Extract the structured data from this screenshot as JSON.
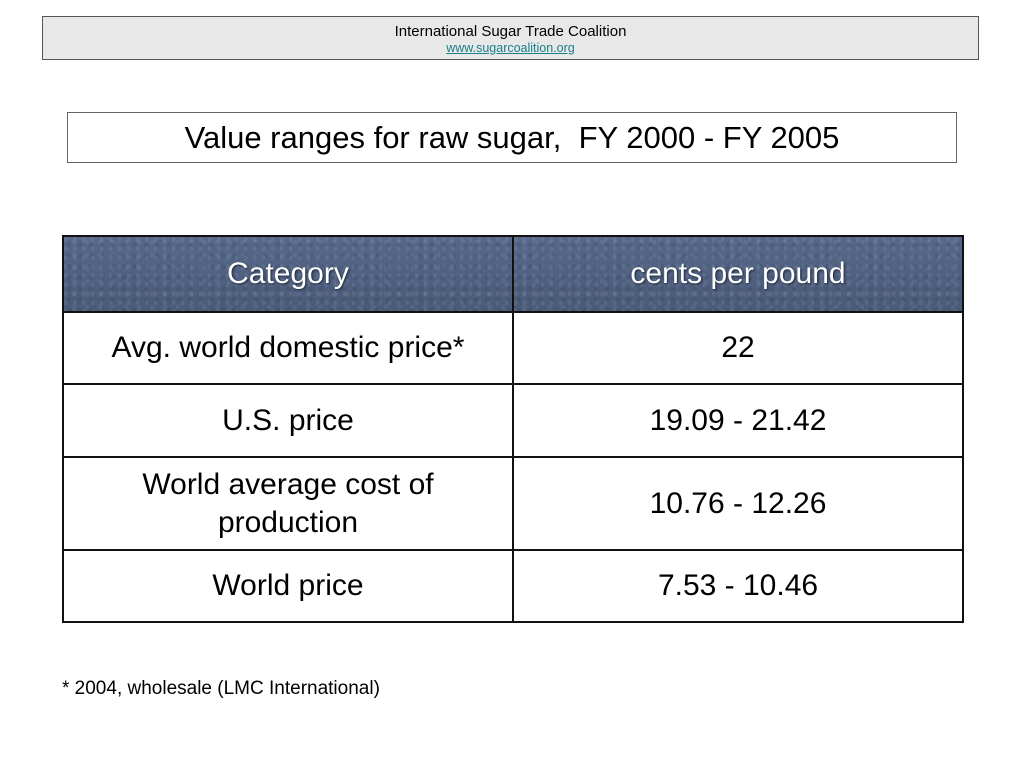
{
  "header": {
    "organization": "International Sugar Trade Coalition",
    "url": "www.sugarcoalition.org"
  },
  "title": "Value ranges for raw sugar,  FY 2000 - FY 2005",
  "table": {
    "columns": [
      "Category",
      "cents per pound"
    ],
    "rows": [
      {
        "category": "Avg. world domestic price*",
        "value": "22"
      },
      {
        "category": "U.S. price",
        "value": "19.09 - 21.42"
      },
      {
        "category": "World average cost of production",
        "value": "10.76 - 12.26"
      },
      {
        "category": "World price",
        "value": "7.53 - 10.46"
      }
    ]
  },
  "footnote": "* 2004, wholesale (LMC International)",
  "colors": {
    "header_fill": "#4e5f7e",
    "link": "#1a7f8a",
    "header_box_fill": "#e8e8e8"
  }
}
